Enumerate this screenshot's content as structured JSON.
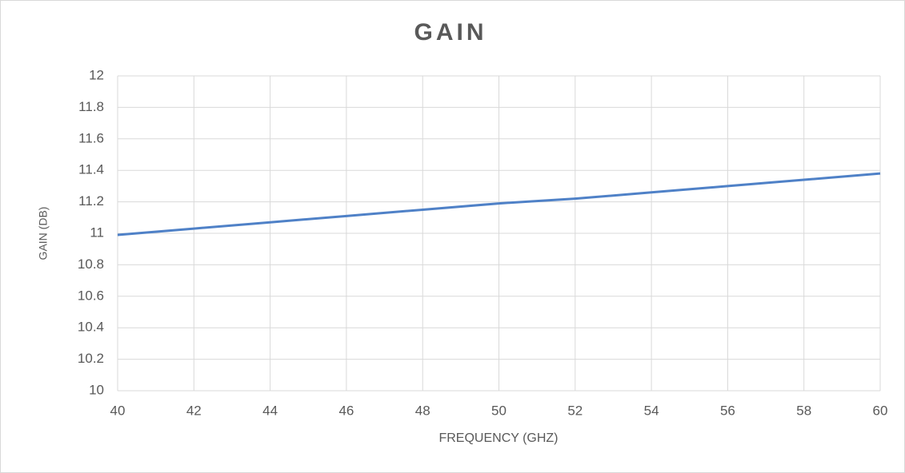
{
  "chart_data": {
    "type": "line",
    "title": "GAIN",
    "x_label": "FREQUENCY (GHZ)",
    "y_label": "GAIN (DB)",
    "x": [
      40,
      42,
      44,
      46,
      48,
      50,
      52,
      54,
      56,
      58,
      60
    ],
    "values": [
      10.99,
      11.03,
      11.07,
      11.11,
      11.15,
      11.19,
      11.22,
      11.26,
      11.3,
      11.34,
      11.38
    ],
    "color": "#4f81c7",
    "xlim": [
      40,
      60
    ],
    "xticks": [
      40,
      42,
      44,
      46,
      48,
      50,
      52,
      54,
      56,
      58,
      60
    ],
    "ylim": [
      10,
      12
    ],
    "yticks": [
      10,
      10.2,
      10.4,
      10.6,
      10.8,
      11,
      11.2,
      11.4,
      11.6,
      11.8,
      12
    ],
    "grid": true
  }
}
